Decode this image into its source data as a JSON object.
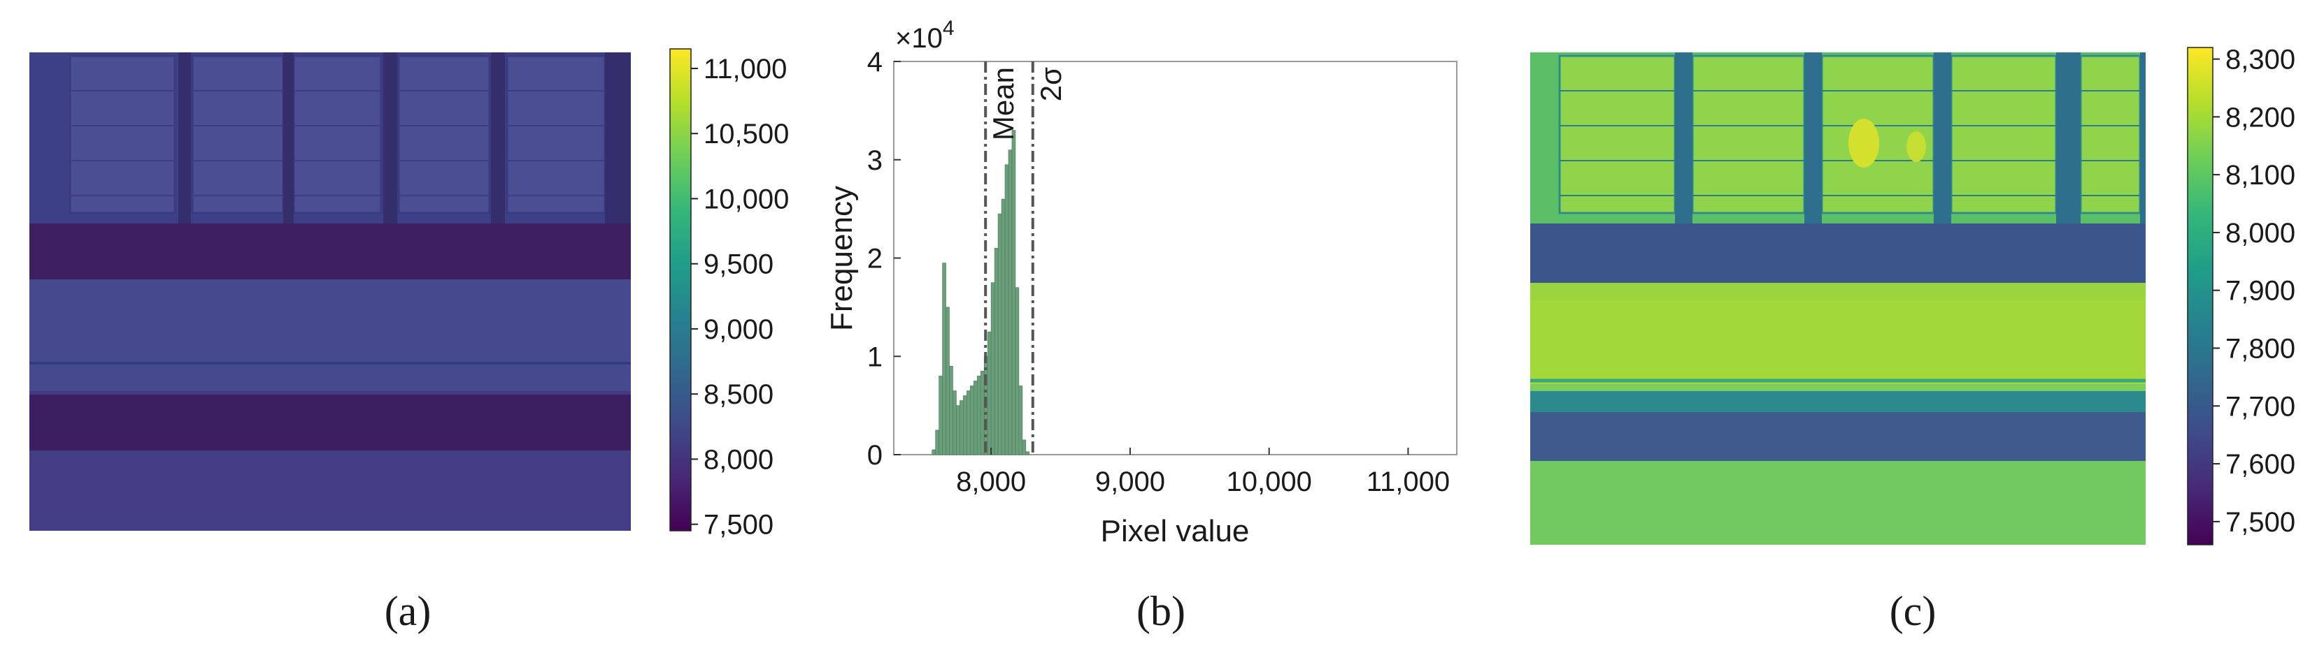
{
  "panel_labels": [
    "(a)",
    "(b)",
    "(c)"
  ],
  "colors": {
    "viridis": [
      "#440154",
      "#482878",
      "#3e4a89",
      "#31688e",
      "#26828e",
      "#1f9e89",
      "#35b779",
      "#6ece58",
      "#b5de2b",
      "#fde725"
    ],
    "hist_fill": "#6b9e7a",
    "hist_edge": "#4a7a58",
    "marker_line": "#555555"
  },
  "chart_data": [
    {
      "type": "heatmap",
      "panel": "(a)",
      "description_scene": "aerial thermal image of building roof with windows, road and vegetation",
      "colorbar": {
        "ticks": [
          7500,
          8000,
          8500,
          9000,
          9500,
          10000,
          10500,
          11000
        ],
        "tick_labels": [
          "7,500",
          "8,000",
          "8,500",
          "9,000",
          "9,500",
          "10,000",
          "10,500",
          "11,000"
        ],
        "range": [
          7450,
          11150
        ]
      }
    },
    {
      "type": "bar",
      "panel": "(b)",
      "xlabel": "Pixel value",
      "ylabel": "Frequency",
      "y_multiplier_label": "×10",
      "y_multiplier_exp": "4",
      "xlim": [
        7300,
        11350
      ],
      "ylim": [
        0,
        40000
      ],
      "x_ticks": [
        8000,
        9000,
        10000,
        11000
      ],
      "x_tick_labels": [
        "8,000",
        "9,000",
        "10,000",
        "11,000"
      ],
      "y_ticks": [
        0,
        10000,
        20000,
        30000,
        40000
      ],
      "y_tick_labels": [
        "0",
        "1",
        "2",
        "3",
        "4"
      ],
      "bin_width": 25,
      "bins": [
        [
          7575,
          500
        ],
        [
          7600,
          2500
        ],
        [
          7625,
          8000
        ],
        [
          7650,
          19500
        ],
        [
          7675,
          15000
        ],
        [
          7700,
          9000
        ],
        [
          7725,
          6500
        ],
        [
          7750,
          5000
        ],
        [
          7775,
          5500
        ],
        [
          7800,
          6000
        ],
        [
          7825,
          6500
        ],
        [
          7850,
          7000
        ],
        [
          7875,
          7500
        ],
        [
          7900,
          8000
        ],
        [
          7925,
          8500
        ],
        [
          7950,
          10000
        ],
        [
          7975,
          12500
        ],
        [
          8000,
          17500
        ],
        [
          8025,
          21000
        ],
        [
          8050,
          24500
        ],
        [
          8075,
          26000
        ],
        [
          8100,
          29500
        ],
        [
          8125,
          31000
        ],
        [
          8150,
          33000
        ],
        [
          8175,
          17000
        ],
        [
          8200,
          7000
        ],
        [
          8225,
          1500
        ],
        [
          8250,
          300
        ]
      ],
      "markers": [
        {
          "label": "Mean",
          "x": 7960
        },
        {
          "label": "2σ",
          "x": 8300
        }
      ]
    },
    {
      "type": "heatmap",
      "panel": "(c)",
      "description_scene": "same scene rescaled to narrower range",
      "colorbar": {
        "ticks": [
          7500,
          7600,
          7700,
          7800,
          7900,
          8000,
          8100,
          8200,
          8300
        ],
        "tick_labels": [
          "7,500",
          "7,600",
          "7,700",
          "7,800",
          "7,900",
          "8,000",
          "8,100",
          "8,200",
          "8,300"
        ],
        "range": [
          7460,
          8320
        ]
      }
    }
  ]
}
